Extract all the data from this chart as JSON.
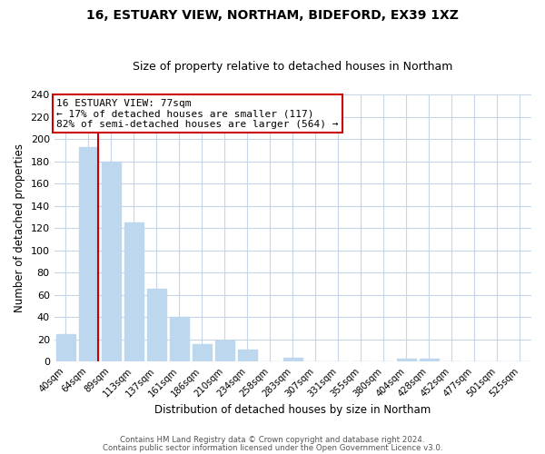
{
  "title": "16, ESTUARY VIEW, NORTHAM, BIDEFORD, EX39 1XZ",
  "subtitle": "Size of property relative to detached houses in Northam",
  "xlabel": "Distribution of detached houses by size in Northam",
  "ylabel": "Number of detached properties",
  "bar_labels": [
    "40sqm",
    "64sqm",
    "89sqm",
    "113sqm",
    "137sqm",
    "161sqm",
    "186sqm",
    "210sqm",
    "234sqm",
    "258sqm",
    "283sqm",
    "307sqm",
    "331sqm",
    "355sqm",
    "380sqm",
    "404sqm",
    "428sqm",
    "452sqm",
    "477sqm",
    "501sqm",
    "525sqm"
  ],
  "bar_values": [
    25,
    193,
    180,
    125,
    66,
    40,
    16,
    19,
    11,
    0,
    4,
    0,
    0,
    0,
    0,
    3,
    3,
    0,
    0,
    0,
    0
  ],
  "bar_color": "#bdd7ee",
  "vline_color": "#cc0000",
  "ylim": [
    0,
    240
  ],
  "yticks": [
    0,
    20,
    40,
    60,
    80,
    100,
    120,
    140,
    160,
    180,
    200,
    220,
    240
  ],
  "annotation_title": "16 ESTUARY VIEW: 77sqm",
  "annotation_line1": "← 17% of detached houses are smaller (117)",
  "annotation_line2": "82% of semi-detached houses are larger (564) →",
  "annotation_box_color": "#ffffff",
  "annotation_box_edge": "#cc0000",
  "footer1": "Contains HM Land Registry data © Crown copyright and database right 2024.",
  "footer2": "Contains public sector information licensed under the Open Government Licence v3.0.",
  "background_color": "#ffffff",
  "grid_color": "#c8d4e8",
  "title_fontsize": 10,
  "subtitle_fontsize": 9
}
